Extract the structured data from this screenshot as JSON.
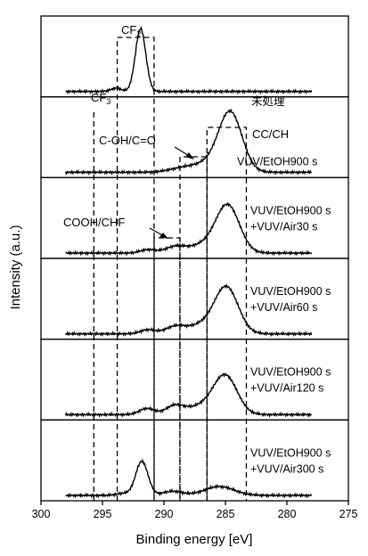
{
  "chart_data": {
    "type": "line",
    "stacked_panels": true,
    "x_reversed": true,
    "xlabel": "Binding energy [eV]",
    "ylabel": "Intensity (a.u.)",
    "xlim": [
      300,
      275
    ],
    "xticks": [
      "300",
      "295",
      "290",
      "285",
      "280",
      "275"
    ],
    "region_labels": {
      "cf2": "CF",
      "cf2_sub": "2",
      "cf3": "CF",
      "cf3_sub": "3",
      "cc_ch": "CC/CH",
      "c_oh_co": "C-OH/C=O",
      "cooh_chf": "COOH/CHF"
    },
    "regions": [
      {
        "key": "cf2",
        "x_from": 293.8,
        "x_to": 290.8
      },
      {
        "key": "cf3",
        "x_from": 295.7,
        "x_to": 293.8
      },
      {
        "key": "cooh_chf",
        "x_from": 290.8,
        "x_to": 288.7
      },
      {
        "key": "c_oh_co",
        "x_from": 288.7,
        "x_to": 286.5
      },
      {
        "key": "cc_ch",
        "x_from": 286.5,
        "x_to": 283.3
      }
    ],
    "series": [
      {
        "label": "未処理",
        "label2": "",
        "peaks": [
          {
            "x": 291.9,
            "h": 0.92,
            "w": 0.42
          },
          {
            "x": 293.9,
            "h": 0.05,
            "w": 0.4
          }
        ],
        "color": "#000000"
      },
      {
        "label": "VUV/EtOH900 s",
        "label2": "",
        "peaks": [
          {
            "x": 284.6,
            "h": 0.86,
            "w": 0.95
          },
          {
            "x": 286.6,
            "h": 0.12,
            "w": 1.3
          },
          {
            "x": 288.8,
            "h": 0.04,
            "w": 1.0
          }
        ],
        "color": "#000000"
      },
      {
        "label": "VUV/EtOH900 s",
        "label2": "+VUV/Air30 s",
        "peaks": [
          {
            "x": 284.8,
            "h": 0.68,
            "w": 0.95
          },
          {
            "x": 286.7,
            "h": 0.12,
            "w": 1.2
          },
          {
            "x": 289.1,
            "h": 0.09,
            "w": 0.8
          },
          {
            "x": 291.3,
            "h": 0.05,
            "w": 0.6
          }
        ],
        "color": "#000000"
      },
      {
        "label": "VUV/EtOH900 s",
        "label2": "+VUV/Air60 s",
        "peaks": [
          {
            "x": 284.9,
            "h": 0.66,
            "w": 0.95
          },
          {
            "x": 286.8,
            "h": 0.13,
            "w": 1.2
          },
          {
            "x": 289.1,
            "h": 0.1,
            "w": 0.8
          },
          {
            "x": 291.3,
            "h": 0.06,
            "w": 0.6
          }
        ],
        "color": "#000000"
      },
      {
        "label": "VUV/EtOH900 s",
        "label2": "+VUV/Air120 s",
        "peaks": [
          {
            "x": 285.0,
            "h": 0.56,
            "w": 0.95
          },
          {
            "x": 286.9,
            "h": 0.12,
            "w": 1.1
          },
          {
            "x": 289.1,
            "h": 0.13,
            "w": 0.75
          },
          {
            "x": 291.4,
            "h": 0.09,
            "w": 0.6
          }
        ],
        "color": "#000000"
      },
      {
        "label": "VUV/EtOH900 s",
        "label2": "+VUV/Air300 s",
        "peaks": [
          {
            "x": 291.8,
            "h": 0.5,
            "w": 0.5
          },
          {
            "x": 285.5,
            "h": 0.13,
            "w": 1.2
          },
          {
            "x": 289.3,
            "h": 0.06,
            "w": 0.8
          },
          {
            "x": 293.4,
            "h": 0.03,
            "w": 0.5
          }
        ],
        "color": "#000000"
      }
    ]
  }
}
